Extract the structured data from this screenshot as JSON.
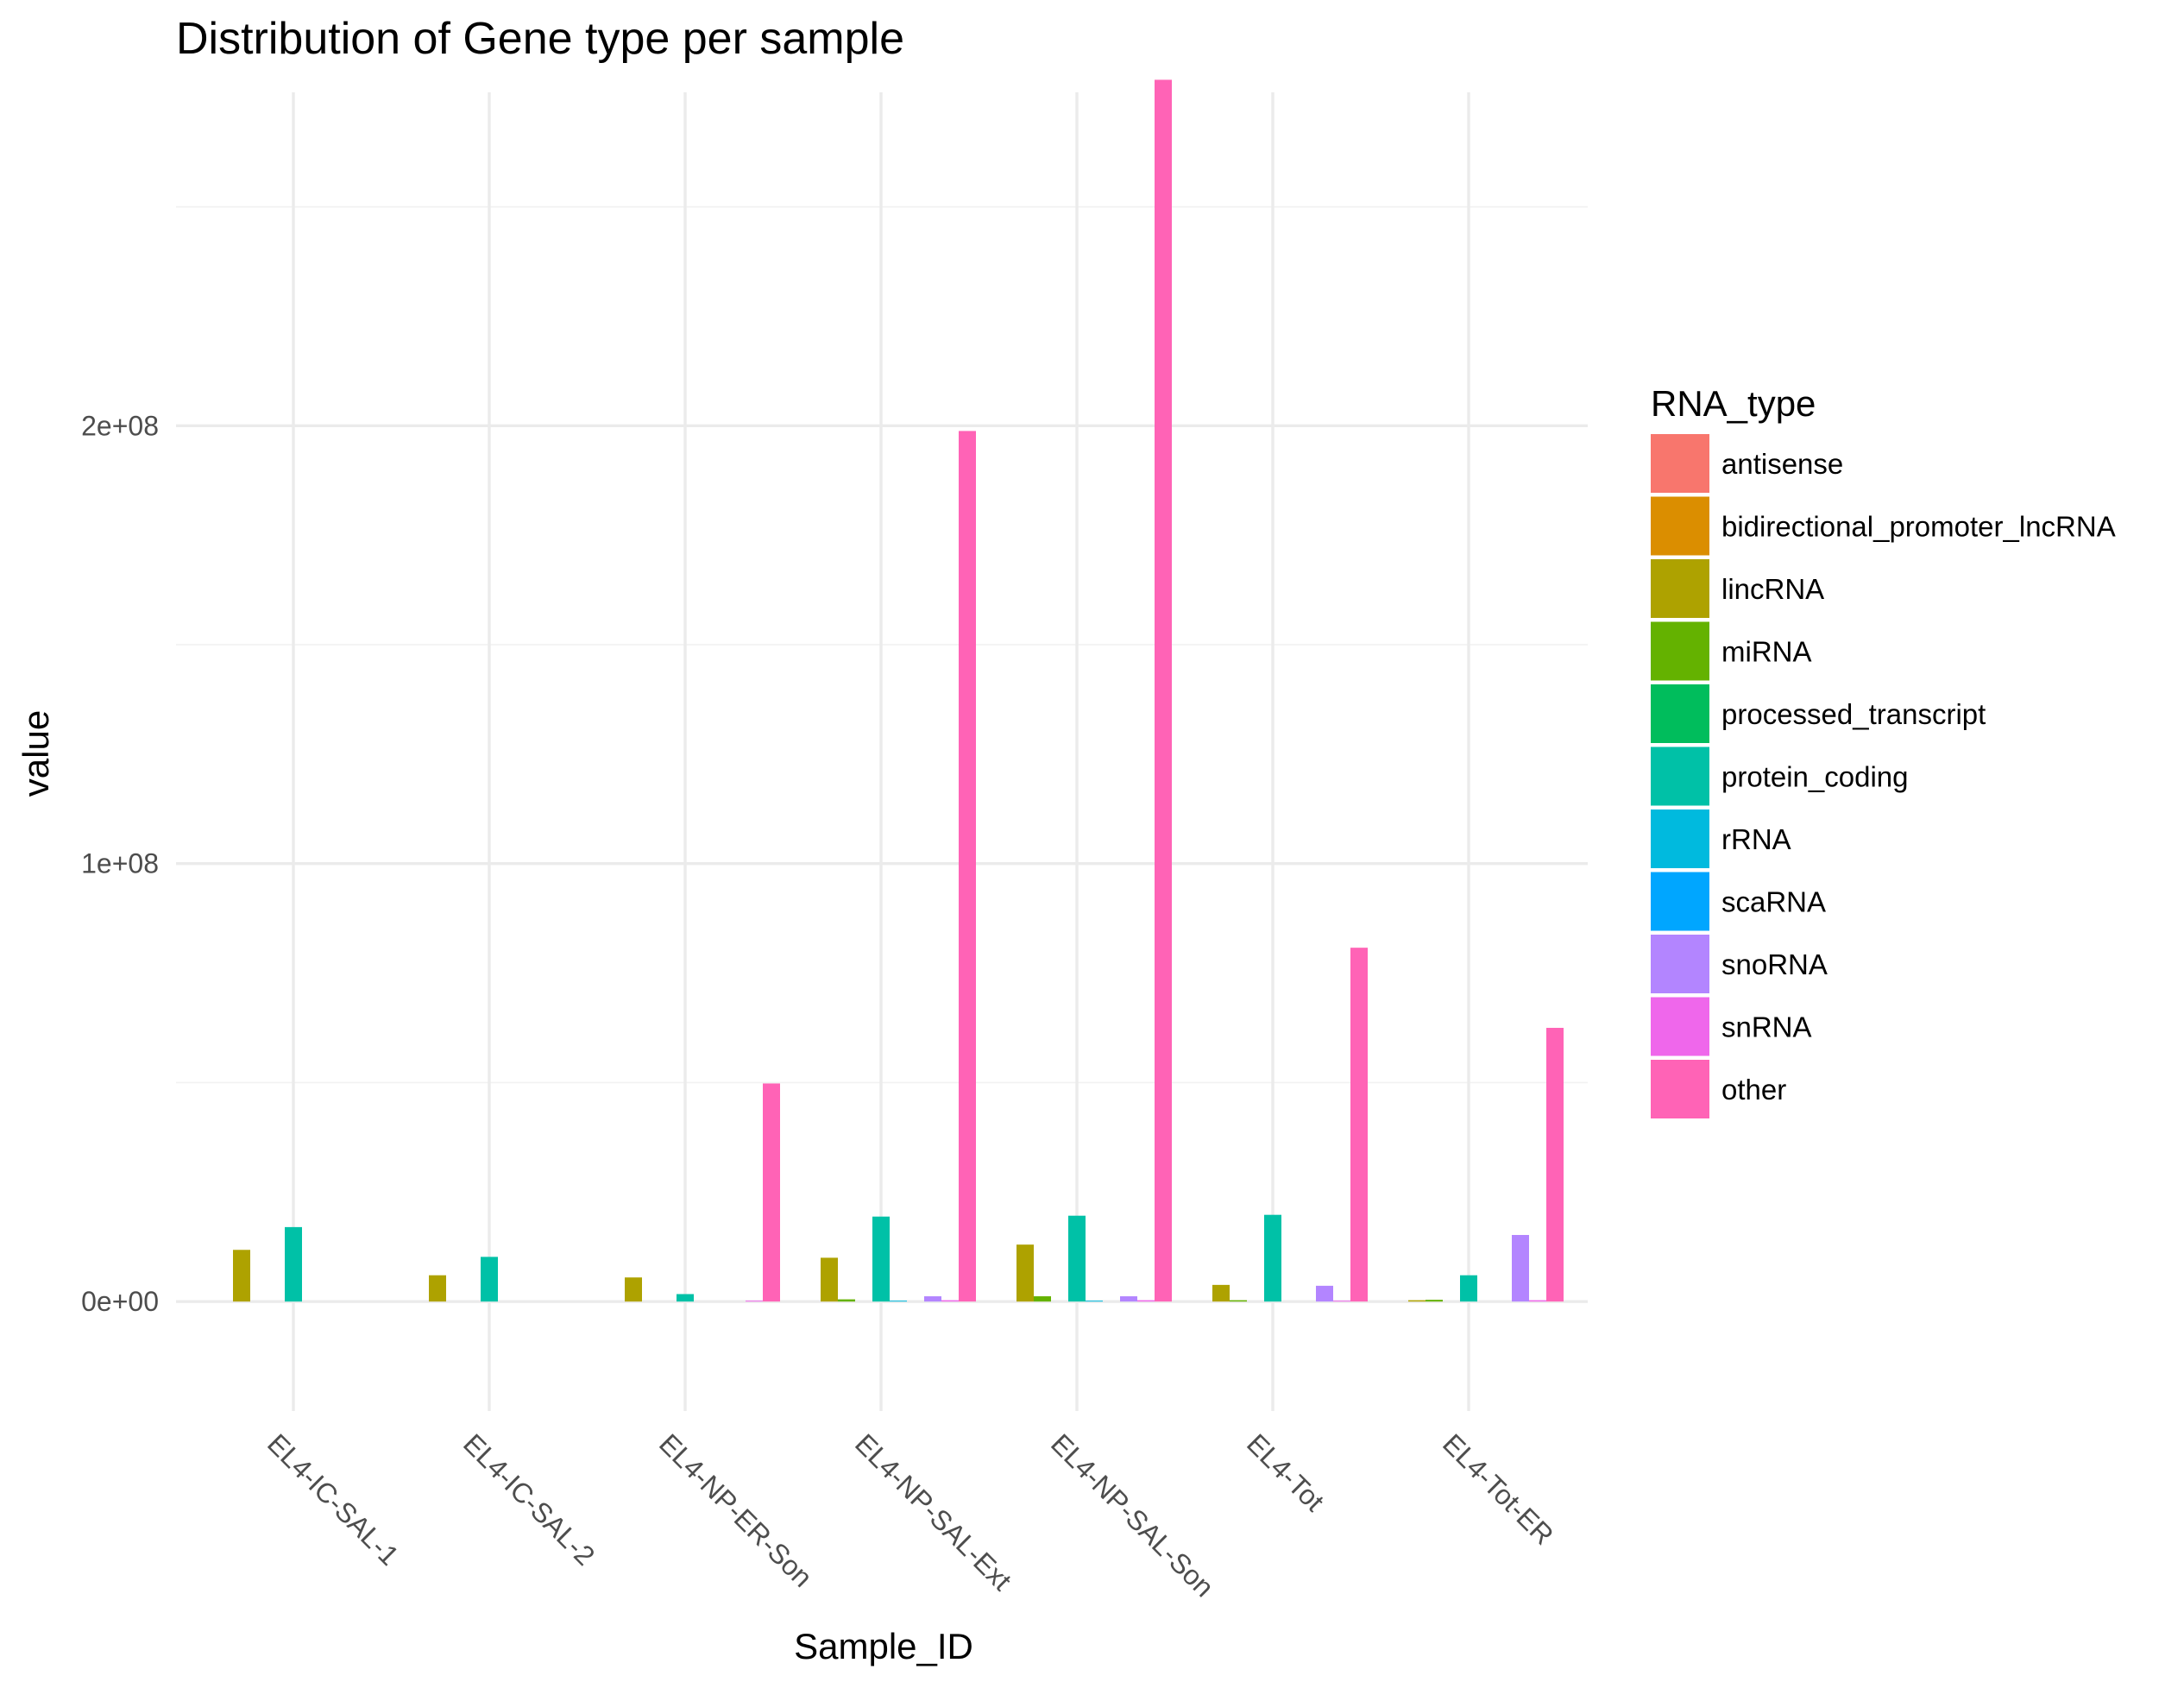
{
  "chart_data": {
    "type": "bar",
    "title": "Distribution of Gene type per sample",
    "xlabel": "Sample_ID",
    "ylabel": "value",
    "ylim": [
      -25000000,
      285000000
    ],
    "yticks": [
      {
        "value": 0,
        "label": "0e+00"
      },
      {
        "value": 100000000,
        "label": "1e+08"
      },
      {
        "value": 200000000,
        "label": "2e+08"
      }
    ],
    "grid": true,
    "legend": {
      "title": "RNA_type",
      "position": "right"
    },
    "categories": [
      "EL4-IC-SAL-1",
      "EL4-IC-SAL-2",
      "EL4-NP-ER-Son",
      "EL4-NP-SAL-Ext",
      "EL4-NP-SAL-Son",
      "EL4-Tot",
      "EL4-Tot-ER"
    ],
    "series": [
      {
        "name": "antisense",
        "color": "#F8766D",
        "values": [
          0,
          0,
          0,
          0,
          0,
          0,
          0
        ]
      },
      {
        "name": "bidirectional_promoter_lncRNA",
        "color": "#DB8E00",
        "values": [
          0,
          0,
          0,
          0,
          0,
          0,
          0
        ]
      },
      {
        "name": "lincRNA",
        "color": "#AEA200",
        "values": [
          11800000,
          6000000,
          5500000,
          10000000,
          13000000,
          3800000,
          300000
        ]
      },
      {
        "name": "miRNA",
        "color": "#64B200",
        "values": [
          0,
          0,
          0,
          500000,
          1200000,
          300000,
          400000
        ]
      },
      {
        "name": "processed_transcript",
        "color": "#00BD5C",
        "values": [
          0,
          0,
          0,
          0,
          0,
          0,
          0
        ]
      },
      {
        "name": "protein_coding",
        "color": "#00C1A7",
        "values": [
          17000000,
          10200000,
          1700000,
          19400000,
          19600000,
          19800000,
          6000000
        ]
      },
      {
        "name": "rRNA",
        "color": "#00BADE",
        "values": [
          0,
          0,
          0,
          200000,
          200000,
          0,
          0
        ]
      },
      {
        "name": "scaRNA",
        "color": "#00A6FF",
        "values": [
          0,
          0,
          0,
          0,
          0,
          0,
          0
        ]
      },
      {
        "name": "snoRNA",
        "color": "#B385FF",
        "values": [
          0,
          0,
          0,
          1200000,
          1200000,
          3600000,
          15200000
        ]
      },
      {
        "name": "snRNA",
        "color": "#EF67EB",
        "values": [
          0,
          0,
          200000,
          300000,
          300000,
          200000,
          300000
        ]
      },
      {
        "name": "other",
        "color": "#FF63B6",
        "values": [
          0,
          0,
          49800000,
          198800000,
          279000000,
          80800000,
          62500000
        ]
      }
    ]
  }
}
